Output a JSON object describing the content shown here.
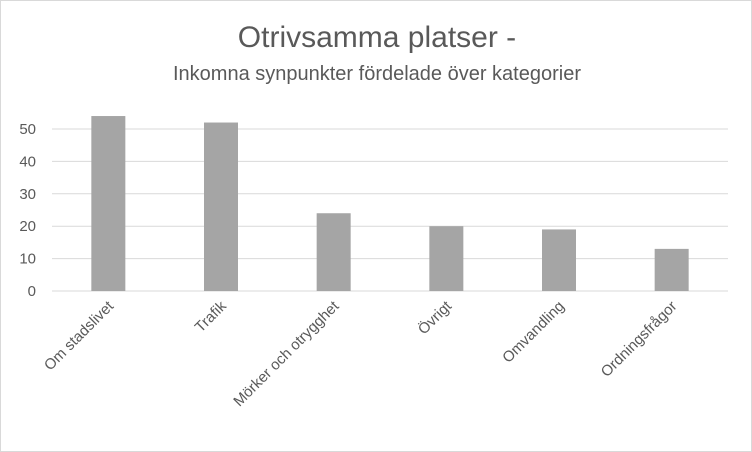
{
  "chart_data": {
    "type": "bar",
    "title": "Otrivsamma platser -",
    "subtitle": "Inkomna synpunkter fördelade över kategorier",
    "categories": [
      "Om stadslivet",
      "Trafik",
      "Mörker och otrygghet",
      "Övrigt",
      "Omvandling",
      "Ordningsfrågor"
    ],
    "values": [
      54,
      52,
      24,
      20,
      19,
      13
    ],
    "xlabel": "",
    "ylabel": "",
    "ylim": [
      0,
      50
    ],
    "yticks": [
      0,
      10,
      20,
      30,
      40,
      50
    ],
    "grid": true,
    "legend": "none",
    "colors": {
      "bar": "#a5a5a5",
      "grid": "#d9d9d9",
      "text": "#595959"
    }
  }
}
